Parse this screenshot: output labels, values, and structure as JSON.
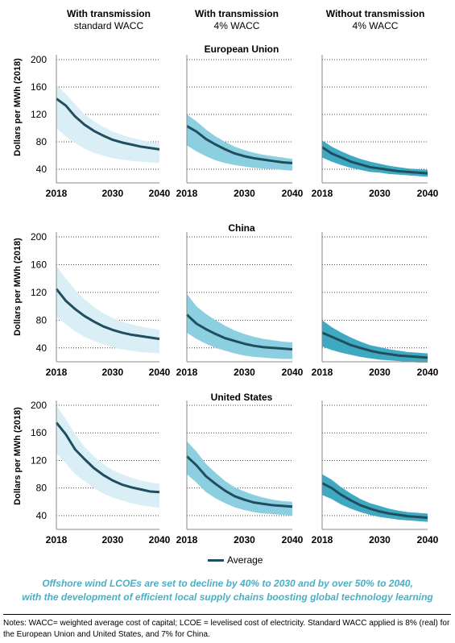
{
  "columns": [
    {
      "title": "With transmission",
      "subtitle": "standard WACC"
    },
    {
      "title": "With transmission",
      "subtitle": "4% WACC"
    },
    {
      "title": "Without transmission",
      "subtitle": "4% WACC"
    }
  ],
  "y_axis_label": "Dollars per MWh (2018)",
  "legend": {
    "label": "Average"
  },
  "caption": {
    "line1": "Offshore wind LCOEs are set to decline by 40% to 2030 and by over 50% to 2040,",
    "line2": "with the development of efficient local supply chains boosting global technology learning"
  },
  "notes": "Notes: WACC= weighted average cost of capital; LCOE = levelised cost of electricity. Standard WACC applied is 8% (real) for the European Union and United States, and 7% for China.",
  "colors": {
    "band": [
      "#d9eef5",
      "#8ccfe0",
      "#3fa9c1"
    ],
    "average": "#1f4e5f",
    "caption": "#4aaec4"
  },
  "chart_data": {
    "type": "area",
    "x_ticks": [
      2018,
      2030,
      2040
    ],
    "y_ticks": [
      40,
      80,
      120,
      160,
      200
    ],
    "ylim": [
      20,
      200
    ],
    "xlim": [
      2018,
      2040
    ],
    "x": [
      2018,
      2020,
      2022,
      2024,
      2026,
      2028,
      2030,
      2032,
      2034,
      2036,
      2038,
      2040
    ],
    "regions": [
      {
        "name": "European Union",
        "panels": [
          {
            "average": [
              143,
              133,
              117,
              105,
              96,
              89,
              83,
              79,
              76,
              73,
              71,
              69
            ],
            "low": [
              100,
              88,
              78,
              70,
              64,
              60,
              56,
              54,
              52,
              51,
              50,
              49
            ],
            "high": [
              163,
              150,
              135,
              120,
              110,
              102,
              95,
              90,
              86,
              83,
              80,
              78
            ]
          },
          {
            "average": [
              103,
              95,
              84,
              76,
              69,
              63,
              59,
              56,
              54,
              52,
              50,
              49
            ],
            "low": [
              75,
              66,
              59,
              53,
              49,
              46,
              44,
              42,
              41,
              40,
              39,
              38
            ],
            "high": [
              120,
              110,
              98,
              88,
              80,
              73,
              68,
              64,
              61,
              59,
              57,
              55
            ]
          },
          {
            "average": [
              72,
              63,
              57,
              51,
              47,
              43,
              41,
              39,
              37,
              36,
              35,
              34
            ],
            "low": [
              57,
              51,
              46,
              42,
              39,
              36,
              35,
              33,
              32,
              31,
              30,
              29
            ],
            "high": [
              82,
              73,
              66,
              60,
              55,
              51,
              48,
              45,
              43,
              41,
              40,
              39
            ]
          }
        ]
      },
      {
        "name": "China",
        "panels": [
          {
            "average": [
              125,
              108,
              96,
              86,
              78,
              71,
              66,
              62,
              59,
              57,
              55,
              53
            ],
            "low": [
              85,
              74,
              64,
              56,
              50,
              45,
              41,
              38,
              36,
              34,
              33,
              32
            ],
            "high": [
              158,
              140,
              124,
              110,
              99,
              90,
              83,
              78,
              74,
              71,
              68,
              66
            ]
          },
          {
            "average": [
              88,
              75,
              67,
              60,
              54,
              50,
              46,
              43,
              41,
              40,
              39,
              38
            ],
            "low": [
              62,
              53,
              46,
              40,
              36,
              32,
              29,
              27,
              26,
              25,
              24,
              24
            ],
            "high": [
              118,
              100,
              89,
              80,
              72,
              65,
              60,
              56,
              53,
              51,
              49,
              48
            ]
          },
          {
            "average": [
              62,
              56,
              50,
              44,
              40,
              36,
              33,
              31,
              29,
              28,
              27,
              26
            ],
            "low": [
              42,
              37,
              33,
              30,
              27,
              25,
              23,
              22,
              21,
              20,
              19,
              19
            ],
            "high": [
              80,
              70,
              62,
              55,
              49,
              44,
              41,
              38,
              36,
              34,
              33,
              32
            ]
          }
        ]
      },
      {
        "name": "United States",
        "panels": [
          {
            "average": [
              175,
              158,
              136,
              122,
              109,
              99,
              91,
              85,
              81,
              78,
              75,
              74
            ],
            "low": [
              130,
              116,
              100,
              90,
              80,
              72,
              66,
              62,
              58,
              55,
              53,
              51
            ],
            "high": [
              200,
              180,
              158,
              140,
              126,
              115,
              106,
              100,
              95,
              91,
              88,
              86
            ]
          },
          {
            "average": [
              126,
              113,
              97,
              86,
              76,
              68,
              63,
              59,
              57,
              55,
              54,
              53
            ],
            "low": [
              100,
              88,
              74,
              65,
              58,
              52,
              48,
              45,
              43,
              42,
              41,
              40
            ],
            "high": [
              148,
              133,
              115,
              102,
              90,
              81,
              75,
              70,
              66,
              63,
              61,
              60
            ]
          },
          {
            "average": [
              87,
              80,
              70,
              62,
              55,
              50,
              46,
              43,
              41,
              39,
              38,
              37
            ],
            "low": [
              70,
              64,
              56,
              50,
              45,
              41,
              38,
              36,
              34,
              33,
              32,
              31
            ],
            "high": [
              100,
              92,
              81,
              72,
              64,
              58,
              54,
              50,
              47,
              45,
              44,
              43
            ]
          }
        ]
      }
    ]
  }
}
